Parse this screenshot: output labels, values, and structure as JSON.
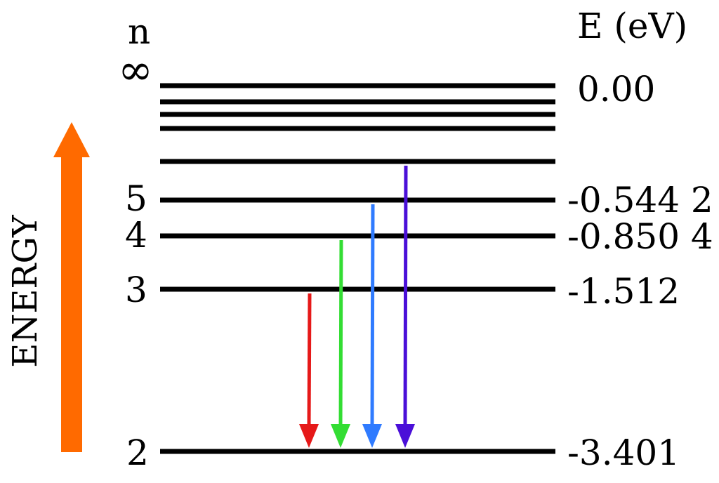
{
  "headers": {
    "n": "n",
    "energy_unit": "E (eV)"
  },
  "axis_label": "ENERGY",
  "levels": [
    {
      "n": "∞",
      "energy": "0.00"
    },
    {
      "n": "5",
      "energy": "-0.544 2"
    },
    {
      "n": "4",
      "energy": "-0.850 4"
    },
    {
      "n": "3",
      "energy": "-1.512"
    },
    {
      "n": "2",
      "energy": "-3.401"
    }
  ],
  "transitions": [
    {
      "from": 3,
      "to": 2,
      "color": "#e61919"
    },
    {
      "from": 4,
      "to": 2,
      "color": "#33dd33"
    },
    {
      "from": 5,
      "to": 2,
      "color": "#2f7bff"
    },
    {
      "from": 6,
      "to": 2,
      "color": "#4a0fd8"
    }
  ],
  "colors": {
    "level_lines": "#000000",
    "energy_arrow": "#ff6a00"
  }
}
